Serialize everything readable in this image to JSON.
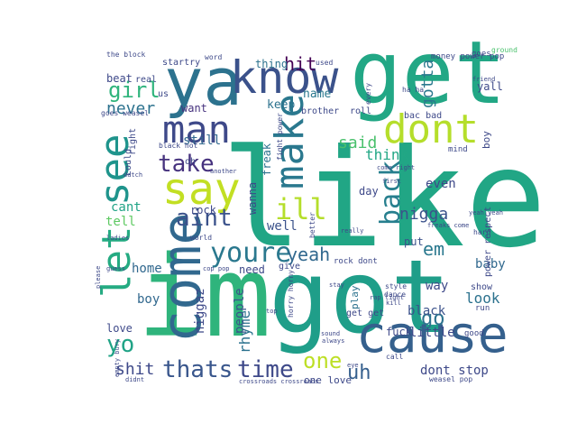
{
  "wordcloud": {
    "background": "#ffffff",
    "words": [
      {
        "text": "like",
        "color": "#21a685"
      },
      {
        "text": "im",
        "color": "#2fb47c"
      },
      {
        "text": "got",
        "color": "#1f9e89"
      },
      {
        "text": "get",
        "color": "#22a785"
      },
      {
        "text": "ya",
        "color": "#2c728e"
      },
      {
        "text": "know",
        "color": "#3b528b"
      },
      {
        "text": "cause",
        "color": "#35608d"
      },
      {
        "text": "come",
        "color": "#31688e"
      },
      {
        "text": "dont",
        "color": "#b5de2b"
      },
      {
        "text": "man",
        "color": "#3e4989"
      },
      {
        "text": "make",
        "color": "#2a788e"
      },
      {
        "text": "say",
        "color": "#c2df23"
      },
      {
        "text": "see",
        "color": "#1f948c"
      },
      {
        "text": "let",
        "color": "#25ab82"
      },
      {
        "text": "youre",
        "color": "#2a788e"
      },
      {
        "text": "thats",
        "color": "#39568c"
      },
      {
        "text": "time",
        "color": "#3e4989"
      },
      {
        "text": "back",
        "color": "#277f8e"
      },
      {
        "text": "take",
        "color": "#46327e"
      },
      {
        "text": "aint",
        "color": "#3b528b"
      },
      {
        "text": "ill",
        "color": "#b5de2b"
      },
      {
        "text": "girl",
        "color": "#2fb47c"
      },
      {
        "text": "yeah",
        "color": "#31688e"
      },
      {
        "text": "yo",
        "color": "#20a386"
      },
      {
        "text": "one",
        "color": "#bddf26"
      },
      {
        "text": "uh",
        "color": "#355f8d"
      },
      {
        "text": "go",
        "color": "#2c728e"
      },
      {
        "text": "nigga",
        "color": "#3b528b"
      },
      {
        "text": "said",
        "color": "#4ac16d"
      },
      {
        "text": "think",
        "color": "#22a785"
      },
      {
        "text": "em",
        "color": "#2a788e"
      },
      {
        "text": "hit",
        "color": "#440154"
      },
      {
        "text": "never",
        "color": "#2c728e"
      },
      {
        "text": "gotta",
        "color": "#2a788e"
      },
      {
        "text": "shit",
        "color": "#3e4989"
      },
      {
        "text": "rhyme",
        "color": "#2c728e"
      },
      {
        "text": "people",
        "color": "#3a538b"
      },
      {
        "text": "niggaz",
        "color": "#3e4989"
      },
      {
        "text": "boy",
        "color": "#31688e"
      },
      {
        "text": "home",
        "color": "#31688e"
      },
      {
        "text": "look",
        "color": "#2c728e"
      },
      {
        "text": "black",
        "color": "#3b528b"
      },
      {
        "text": "little",
        "color": "#3e4989"
      },
      {
        "text": "dont stop",
        "color": "#3e4989"
      },
      {
        "text": "baby",
        "color": "#31688e"
      },
      {
        "text": "even",
        "color": "#3e4989"
      },
      {
        "text": "way",
        "color": "#3e4989"
      },
      {
        "text": "well",
        "color": "#3b528b"
      },
      {
        "text": "tell",
        "color": "#5ec962"
      },
      {
        "text": "cant",
        "color": "#20a386"
      },
      {
        "text": "need",
        "color": "#3e4989"
      },
      {
        "text": "put",
        "color": "#3b528b"
      },
      {
        "text": "still",
        "color": "#31688e"
      },
      {
        "text": "keep",
        "color": "#2c728e"
      },
      {
        "text": "name",
        "color": "#2a788e"
      },
      {
        "text": "want",
        "color": "#46327e"
      },
      {
        "text": "beat",
        "color": "#3e4989"
      },
      {
        "text": "real",
        "color": "#3e4989"
      },
      {
        "text": "startry",
        "color": "#3e4989"
      },
      {
        "text": "thing",
        "color": "#2c728e"
      },
      {
        "text": "love",
        "color": "#3e4989"
      },
      {
        "text": "one love",
        "color": "#3e4989"
      },
      {
        "text": "yall",
        "color": "#3e4989"
      },
      {
        "text": "rock",
        "color": "#3e4989"
      },
      {
        "text": "day",
        "color": "#3e4989"
      },
      {
        "text": "fuck",
        "color": "#3e4989"
      },
      {
        "text": "wanna",
        "color": "#3e4989"
      },
      {
        "text": "freak",
        "color": "#2c728e"
      },
      {
        "text": "play",
        "color": "#2c728e"
      },
      {
        "text": "bac bad",
        "color": "#3e4989"
      },
      {
        "text": "brother",
        "color": "#3e4989"
      },
      {
        "text": "roll",
        "color": "#3e4989"
      },
      {
        "text": "power respect",
        "color": "#3e4989"
      },
      {
        "text": "rock dont",
        "color": "#3e4989"
      },
      {
        "text": "money power pop",
        "color": "#3e4989"
      },
      {
        "text": "goes",
        "color": "#3e4989"
      },
      {
        "text": "ground",
        "color": "#4ac16d"
      },
      {
        "text": "friend",
        "color": "#3e4989"
      },
      {
        "text": "mind",
        "color": "#3e4989"
      },
      {
        "text": "boy",
        "color": "#3e4989"
      },
      {
        "text": "hard",
        "color": "#3e4989"
      },
      {
        "text": "get get",
        "color": "#3e4989"
      },
      {
        "text": "show",
        "color": "#3e4989"
      },
      {
        "text": "run",
        "color": "#3e4989"
      },
      {
        "text": "good",
        "color": "#3e4989"
      },
      {
        "text": "horry horny",
        "color": "#3e4989"
      },
      {
        "text": "could",
        "color": "#3e4989"
      },
      {
        "text": "right",
        "color": "#3e4989"
      },
      {
        "text": "world",
        "color": "#3e4989"
      },
      {
        "text": "word",
        "color": "#3e4989"
      },
      {
        "text": "give",
        "color": "#3e4989"
      },
      {
        "text": "goes weasel",
        "color": "#3e4989"
      },
      {
        "text": "black hot",
        "color": "#3e4989"
      },
      {
        "text": "dance",
        "color": "#3e4989"
      },
      {
        "text": "style",
        "color": "#3e4989"
      },
      {
        "text": "weasel pop",
        "color": "#3e4989"
      },
      {
        "text": "crossroads crossroads",
        "color": "#3e4989"
      },
      {
        "text": "fight power",
        "color": "#3e4989"
      },
      {
        "text": "the block",
        "color": "#3e4989"
      },
      {
        "text": "oh",
        "color": "#3e4989"
      },
      {
        "text": "us",
        "color": "#3e4989"
      },
      {
        "text": "call",
        "color": "#3e4989"
      },
      {
        "text": "freaks come",
        "color": "#3e4989"
      },
      {
        "text": "every",
        "color": "#3e4989"
      },
      {
        "text": "empty bury",
        "color": "#3e4989"
      },
      {
        "text": "ha ha",
        "color": "#3e4989"
      },
      {
        "text": "used",
        "color": "#3e4989"
      },
      {
        "text": "another",
        "color": "#3e4989"
      },
      {
        "text": "top",
        "color": "#3e4989"
      },
      {
        "text": "really",
        "color": "#3e4989"
      },
      {
        "text": "stay",
        "color": "#3e4989"
      },
      {
        "text": "ladies",
        "color": "#3e4989"
      },
      {
        "text": "better",
        "color": "#3e4989"
      },
      {
        "text": "guess",
        "color": "#3e4989"
      },
      {
        "text": "first",
        "color": "#3e4989"
      },
      {
        "text": "rap light",
        "color": "#3e4989"
      },
      {
        "text": "come right",
        "color": "#3e4989"
      },
      {
        "text": "kill",
        "color": "#3e4989"
      },
      {
        "text": "always",
        "color": "#3e4989"
      },
      {
        "text": "sound",
        "color": "#3e4989"
      },
      {
        "text": "please",
        "color": "#3e4989"
      },
      {
        "text": "didnt",
        "color": "#3e4989"
      },
      {
        "text": "eye",
        "color": "#3e4989"
      },
      {
        "text": "watch",
        "color": "#3e4989"
      },
      {
        "text": "cop pop",
        "color": "#3e4989"
      },
      {
        "text": "yeah yeah",
        "color": "#3e4989"
      }
    ]
  }
}
